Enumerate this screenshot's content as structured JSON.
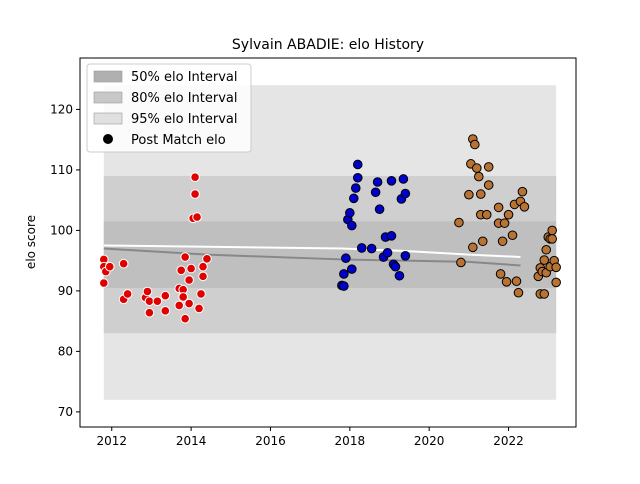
{
  "chart_data": {
    "type": "scatter",
    "title": "Sylvain ABADIE: elo History",
    "xlabel": "",
    "ylabel": "elo score",
    "xlim": [
      2011.2,
      2023.7
    ],
    "ylim": [
      67.5,
      128.5
    ],
    "x_ticks": [
      2012,
      2014,
      2016,
      2018,
      2020,
      2022
    ],
    "y_ticks": [
      70,
      80,
      90,
      100,
      110,
      120
    ],
    "legend": {
      "position": "top-left",
      "entries": [
        {
          "label": "50% elo Interval",
          "color": "#b0b0b0"
        },
        {
          "label": "80% elo Interval",
          "color": "#c8c8c8"
        },
        {
          "label": "95% elo Interval",
          "color": "#e0e0e0"
        },
        {
          "label": "Post Match elo",
          "color": "#000000"
        }
      ]
    },
    "bands": {
      "p95": {
        "start": 2011.8,
        "end": 2023.2,
        "upper": 124,
        "lower": 72,
        "color": "#e2e2e2"
      },
      "p80": {
        "start": 2011.8,
        "end": 2023.2,
        "upper": 109,
        "lower": 83,
        "color": "#cccccc"
      },
      "p50": {
        "start": 2011.8,
        "end": 2023.2,
        "upper": 101.5,
        "lower": 90.5,
        "color": "#bdbdbd"
      }
    },
    "mean_lines": [
      {
        "x": [
          2011.8,
          2014.4,
          2017.8,
          2019.4,
          2021.0,
          2022.3
        ],
        "y": [
          97.5,
          97.3,
          97.0,
          96.6,
          96.0,
          95.6
        ]
      },
      {
        "x": [
          2011.8,
          2014.4,
          2017.8,
          2019.4,
          2021.0,
          2022.3
        ],
        "y": [
          97.0,
          96.0,
          95.2,
          95.0,
          94.8,
          94.2
        ]
      }
    ],
    "series": [
      {
        "color": "#e00000",
        "edge": "#ffffff",
        "points": [
          [
            2011.8,
            95.2
          ],
          [
            2011.8,
            94.0
          ],
          [
            2011.8,
            91.3
          ],
          [
            2011.85,
            93.2
          ],
          [
            2011.95,
            94.0
          ],
          [
            2012.3,
            94.5
          ],
          [
            2012.3,
            88.6
          ],
          [
            2012.4,
            89.5
          ],
          [
            2012.85,
            88.9
          ],
          [
            2012.9,
            89.9
          ],
          [
            2012.95,
            88.3
          ],
          [
            2012.95,
            86.4
          ],
          [
            2013.15,
            88.3
          ],
          [
            2013.35,
            89.2
          ],
          [
            2013.35,
            86.7
          ],
          [
            2013.7,
            90.4
          ],
          [
            2013.7,
            87.6
          ],
          [
            2013.75,
            93.4
          ],
          [
            2013.8,
            90.2
          ],
          [
            2013.8,
            89.0
          ],
          [
            2013.85,
            95.6
          ],
          [
            2013.85,
            85.4
          ],
          [
            2013.95,
            87.9
          ],
          [
            2013.95,
            91.8
          ],
          [
            2014.0,
            93.7
          ],
          [
            2014.05,
            102.0
          ],
          [
            2014.1,
            108.8
          ],
          [
            2014.1,
            106.0
          ],
          [
            2014.15,
            102.2
          ],
          [
            2014.2,
            87.1
          ],
          [
            2014.25,
            89.5
          ],
          [
            2014.3,
            94.0
          ],
          [
            2014.3,
            92.4
          ],
          [
            2014.4,
            95.3
          ]
        ]
      },
      {
        "color": "#0000cc",
        "edge": "#000000",
        "points": [
          [
            2017.8,
            90.9
          ],
          [
            2017.85,
            90.8
          ],
          [
            2017.85,
            92.8
          ],
          [
            2017.9,
            95.4
          ],
          [
            2017.95,
            101.8
          ],
          [
            2018.0,
            102.9
          ],
          [
            2018.05,
            100.8
          ],
          [
            2018.05,
            93.6
          ],
          [
            2018.1,
            105.3
          ],
          [
            2018.15,
            107.0
          ],
          [
            2018.2,
            108.7
          ],
          [
            2018.2,
            110.9
          ],
          [
            2018.3,
            97.1
          ],
          [
            2018.65,
            106.3
          ],
          [
            2018.7,
            108.0
          ],
          [
            2018.75,
            103.5
          ],
          [
            2018.85,
            95.6
          ],
          [
            2018.9,
            98.9
          ],
          [
            2018.95,
            96.3
          ],
          [
            2019.05,
            108.2
          ],
          [
            2019.05,
            99.1
          ],
          [
            2019.1,
            94.4
          ],
          [
            2019.15,
            94.0
          ],
          [
            2019.25,
            92.5
          ],
          [
            2019.3,
            105.2
          ],
          [
            2019.35,
            108.5
          ],
          [
            2019.4,
            106.1
          ],
          [
            2019.4,
            95.8
          ],
          [
            2018.55,
            97.0
          ]
        ]
      },
      {
        "color": "#b87333",
        "edge": "#000000",
        "points": [
          [
            2020.75,
            101.3
          ],
          [
            2020.8,
            94.7
          ],
          [
            2021.0,
            105.9
          ],
          [
            2021.05,
            111.0
          ],
          [
            2021.1,
            97.2
          ],
          [
            2021.1,
            115.1
          ],
          [
            2021.15,
            114.2
          ],
          [
            2021.2,
            110.3
          ],
          [
            2021.25,
            108.9
          ],
          [
            2021.3,
            106.0
          ],
          [
            2021.3,
            102.6
          ],
          [
            2021.35,
            98.2
          ],
          [
            2021.45,
            102.6
          ],
          [
            2021.5,
            110.5
          ],
          [
            2021.5,
            107.5
          ],
          [
            2021.75,
            103.8
          ],
          [
            2021.75,
            101.2
          ],
          [
            2021.8,
            92.8
          ],
          [
            2021.85,
            98.2
          ],
          [
            2021.9,
            101.2
          ],
          [
            2021.95,
            91.5
          ],
          [
            2022.0,
            102.6
          ],
          [
            2022.1,
            99.2
          ],
          [
            2022.15,
            104.3
          ],
          [
            2022.2,
            91.6
          ],
          [
            2022.25,
            89.7
          ],
          [
            2022.3,
            104.8
          ],
          [
            2022.35,
            106.4
          ],
          [
            2022.4,
            103.9
          ],
          [
            2022.75,
            92.4
          ],
          [
            2022.8,
            89.5
          ],
          [
            2022.8,
            93.8
          ],
          [
            2022.85,
            93.2
          ],
          [
            2022.9,
            89.5
          ],
          [
            2022.9,
            95.1
          ],
          [
            2022.95,
            96.8
          ],
          [
            2022.95,
            93.0
          ],
          [
            2023.0,
            98.9
          ],
          [
            2023.05,
            98.6
          ],
          [
            2023.05,
            94.0
          ],
          [
            2023.1,
            100.0
          ],
          [
            2023.1,
            98.6
          ],
          [
            2023.15,
            95.0
          ],
          [
            2023.2,
            93.9
          ],
          [
            2023.2,
            91.4
          ]
        ]
      }
    ]
  }
}
